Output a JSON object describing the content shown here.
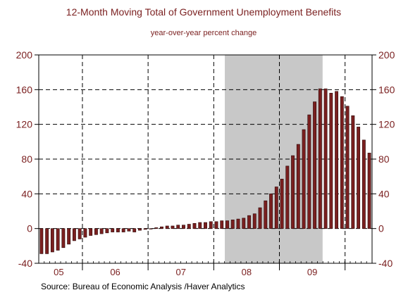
{
  "colors": {
    "title": "#7a1f1f",
    "axis_text": "#7a1f1f",
    "bar_fill": "#7a1f1f",
    "bar_stroke": "#2b0a0a",
    "recession": "#c8c8c8",
    "grid": "#000000"
  },
  "source": "Source:  Bureau of Economic Analysis /Haver Analytics",
  "chart_data": {
    "type": "bar",
    "title": "12-Month Moving Total of Government Unemployment Benefits",
    "subtitle": "year-over-year percent change",
    "xlabel": "",
    "ylabel": "",
    "ylim": [
      -40,
      200
    ],
    "yticks": [
      -40,
      0,
      40,
      80,
      120,
      160,
      200
    ],
    "year_labels": [
      "05",
      "06",
      "07",
      "08",
      "09"
    ],
    "shaded_region": {
      "label": "",
      "start_index": 34,
      "end_index": 51
    },
    "grid": true,
    "values": [
      -29,
      -29,
      -27,
      -25,
      -22,
      -18,
      -14,
      -12,
      -10,
      -8,
      -7,
      -6,
      -5,
      -4,
      -4,
      -4,
      -3,
      -4,
      -2,
      -1,
      0,
      1,
      2,
      3,
      3,
      4,
      4,
      5,
      6,
      7,
      7,
      8,
      8,
      9,
      9,
      10,
      11,
      12,
      15,
      17,
      24,
      32,
      40,
      48,
      57,
      72,
      84,
      97,
      114,
      131,
      146,
      161,
      161,
      156,
      158,
      152,
      141,
      130,
      117,
      102,
      87
    ]
  }
}
